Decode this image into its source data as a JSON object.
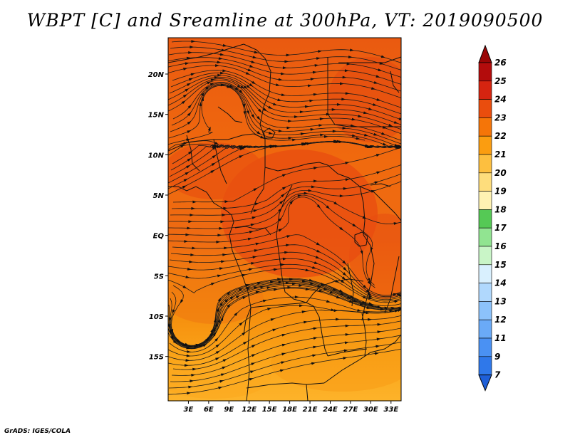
{
  "title": "WBPT [C] and Sreamline at 300hPa, VT: 2019090500",
  "credit": "GrADS: IGES/COLA",
  "map": {
    "lat_labels": [
      "20N",
      "15N",
      "10N",
      "5N",
      "EQ",
      "5S",
      "10S",
      "15S"
    ],
    "lon_labels": [
      "3E",
      "6E",
      "9E",
      "12E",
      "15E",
      "18E",
      "21E",
      "24E",
      "27E",
      "30E",
      "33E"
    ],
    "lon_range": [
      0,
      34.5
    ],
    "lat_range": [
      -20.5,
      24.5
    ]
  },
  "colorbar": {
    "levels": [
      "7",
      "9",
      "11",
      "12",
      "13",
      "14",
      "15",
      "16",
      "17",
      "18",
      "19",
      "20",
      "21",
      "22",
      "23",
      "24",
      "25",
      "26"
    ],
    "colors": [
      "#1e5fd8",
      "#2f78ea",
      "#4a91f3",
      "#6aaaf7",
      "#8cc2fb",
      "#b0d8fd",
      "#d9f0fe",
      "#c9f5c7",
      "#91e491",
      "#55c955",
      "#fff2b2",
      "#fedd7c",
      "#fdbf3f",
      "#fb9d10",
      "#f57508",
      "#ea4d0d",
      "#d52410",
      "#b30c0c",
      "#9a0606"
    ]
  }
}
